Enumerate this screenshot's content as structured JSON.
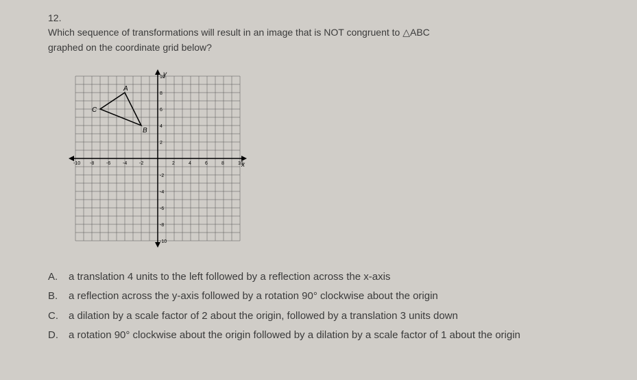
{
  "question": {
    "number": "12.",
    "text_line1": "Which sequence of transformations will result in an image that is NOT congruent to ",
    "triangle": "△ABC",
    "text_line2": "graphed on the coordinate grid below?"
  },
  "grid": {
    "type": "coordinate-grid",
    "xlim": [
      -10,
      10
    ],
    "ylim": [
      -10,
      10
    ],
    "tick_step": 2,
    "axis_labels": {
      "y_top": "y",
      "x_right": "x"
    },
    "tick_labels_x": [
      "-10",
      "-8",
      "-6",
      "-4",
      "-2",
      "2",
      "4",
      "6",
      "8",
      "10"
    ],
    "tick_labels_y": [
      "10",
      "8",
      "6",
      "4",
      "2",
      "-2",
      "-4",
      "-6",
      "-8",
      "-10"
    ],
    "grid_color": "#555555",
    "axis_color": "#000000",
    "background_color": "#d0cdc8",
    "triangle": {
      "label_A": "A",
      "label_B": "B",
      "label_C": "C",
      "A": [
        -4,
        8
      ],
      "B": [
        -2,
        4
      ],
      "C": [
        -7,
        6
      ],
      "stroke": "#000000",
      "fill": "none"
    }
  },
  "options": {
    "A": {
      "letter": "A.",
      "text": "a translation 4 units to the left followed by a reflection across the x-axis"
    },
    "B": {
      "letter": "B.",
      "text": "a reflection across the y-axis followed by a rotation 90° clockwise about the origin"
    },
    "C": {
      "letter": "C.",
      "text": "a dilation by a scale factor of 2 about the origin, followed by a translation 3 units down"
    },
    "D": {
      "letter": "D.",
      "text": "a rotation 90° clockwise about the origin followed by a dilation by a scale factor of 1 about the origin"
    }
  }
}
